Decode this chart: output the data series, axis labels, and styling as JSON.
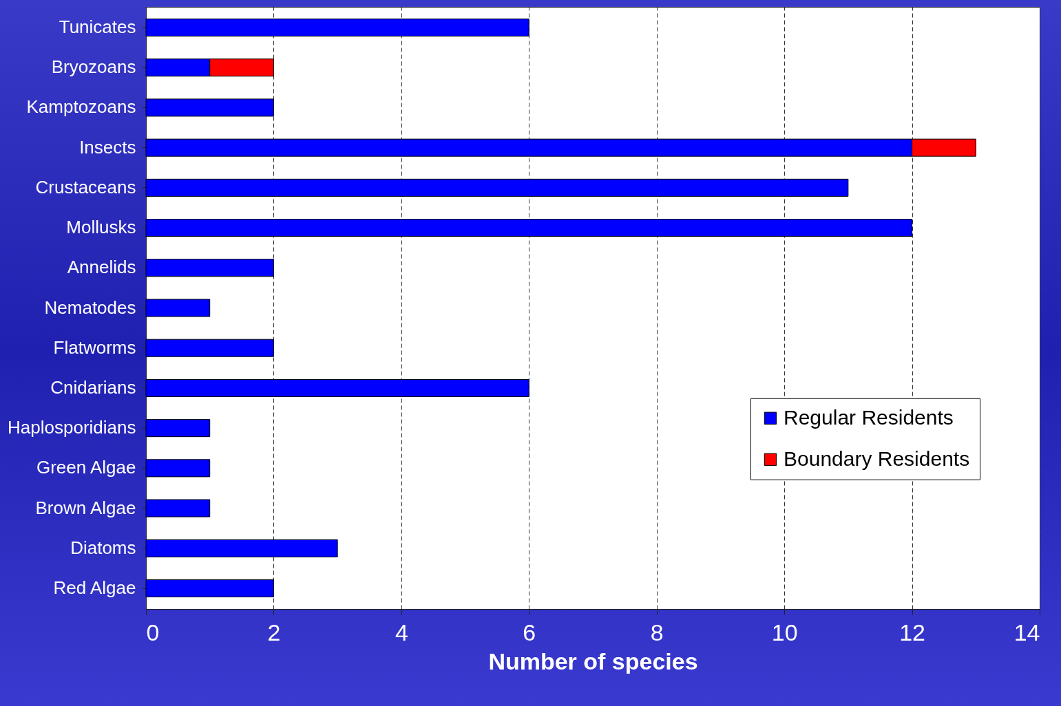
{
  "chart_data": {
    "type": "bar",
    "orientation": "horizontal",
    "stacked": true,
    "xlabel": "Number of species",
    "categories": [
      "Tunicates",
      "Bryozoans",
      "Kamptozoans",
      "Insects",
      "Crustaceans",
      "Mollusks",
      "Annelids",
      "Nematodes",
      "Flatworms",
      "Cnidarians",
      "Haplosporidians",
      "Green Algae",
      "Brown Algae",
      "Diatoms",
      "Red Algae"
    ],
    "series": [
      {
        "name": "Regular Residents",
        "color": "#0000ff",
        "values": [
          6,
          1,
          2,
          12,
          11,
          12,
          2,
          1,
          2,
          6,
          1,
          1,
          1,
          3,
          2
        ]
      },
      {
        "name": "Boundary Residents",
        "color": "#ff0000",
        "values": [
          null,
          1,
          null,
          1,
          null,
          null,
          null,
          null,
          null,
          null,
          null,
          null,
          null,
          null,
          null
        ]
      }
    ],
    "xlim": [
      0,
      14
    ],
    "xticks": [
      0,
      2,
      4,
      6,
      8,
      10,
      12,
      14
    ],
    "grid": "x",
    "legend": "right"
  }
}
